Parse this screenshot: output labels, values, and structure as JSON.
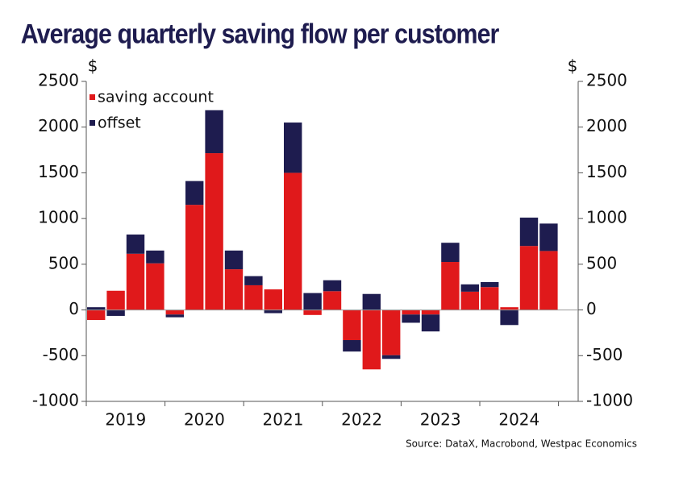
{
  "chart_data": {
    "type": "stacked_bar",
    "title": "Average quarterly saving flow per customer",
    "y_unit": "$",
    "y2_unit": "$",
    "source": "Source: DataX, Macrobond, Westpac Economics",
    "categories": [
      null,
      null,
      null,
      null,
      null,
      null,
      null,
      null,
      null,
      null,
      null,
      null,
      null,
      null,
      null,
      null,
      null,
      null,
      null,
      null,
      null,
      null,
      null,
      null
    ],
    "year_labels": [
      "2019",
      "2020",
      "2021",
      "2022",
      "2023",
      "2024"
    ],
    "series": [
      {
        "name": "saving account",
        "color": "#e0191b",
        "values": [
          -110,
          210,
          615,
          510,
          -50,
          1150,
          1715,
          445,
          270,
          225,
          1500,
          -55,
          205,
          -330,
          -650,
          -495,
          -50,
          -50,
          525,
          200,
          250,
          30,
          700,
          645
        ]
      },
      {
        "name": "offset",
        "color": "#1e1c4f",
        "values": [
          30,
          -65,
          210,
          140,
          -30,
          260,
          470,
          205,
          100,
          -35,
          550,
          185,
          120,
          -125,
          175,
          -40,
          -90,
          -185,
          210,
          80,
          55,
          -165,
          310,
          300
        ]
      }
    ],
    "ylim": [
      -1000,
      2500
    ],
    "yticks": [
      -1000,
      -500,
      0,
      500,
      1000,
      1500,
      2000,
      2500
    ],
    "y2lim": [
      -1000,
      2500
    ],
    "y2ticks": [
      -1000,
      -500,
      0,
      500,
      1000,
      1500,
      2000,
      2500
    ],
    "legend": "upper left"
  }
}
